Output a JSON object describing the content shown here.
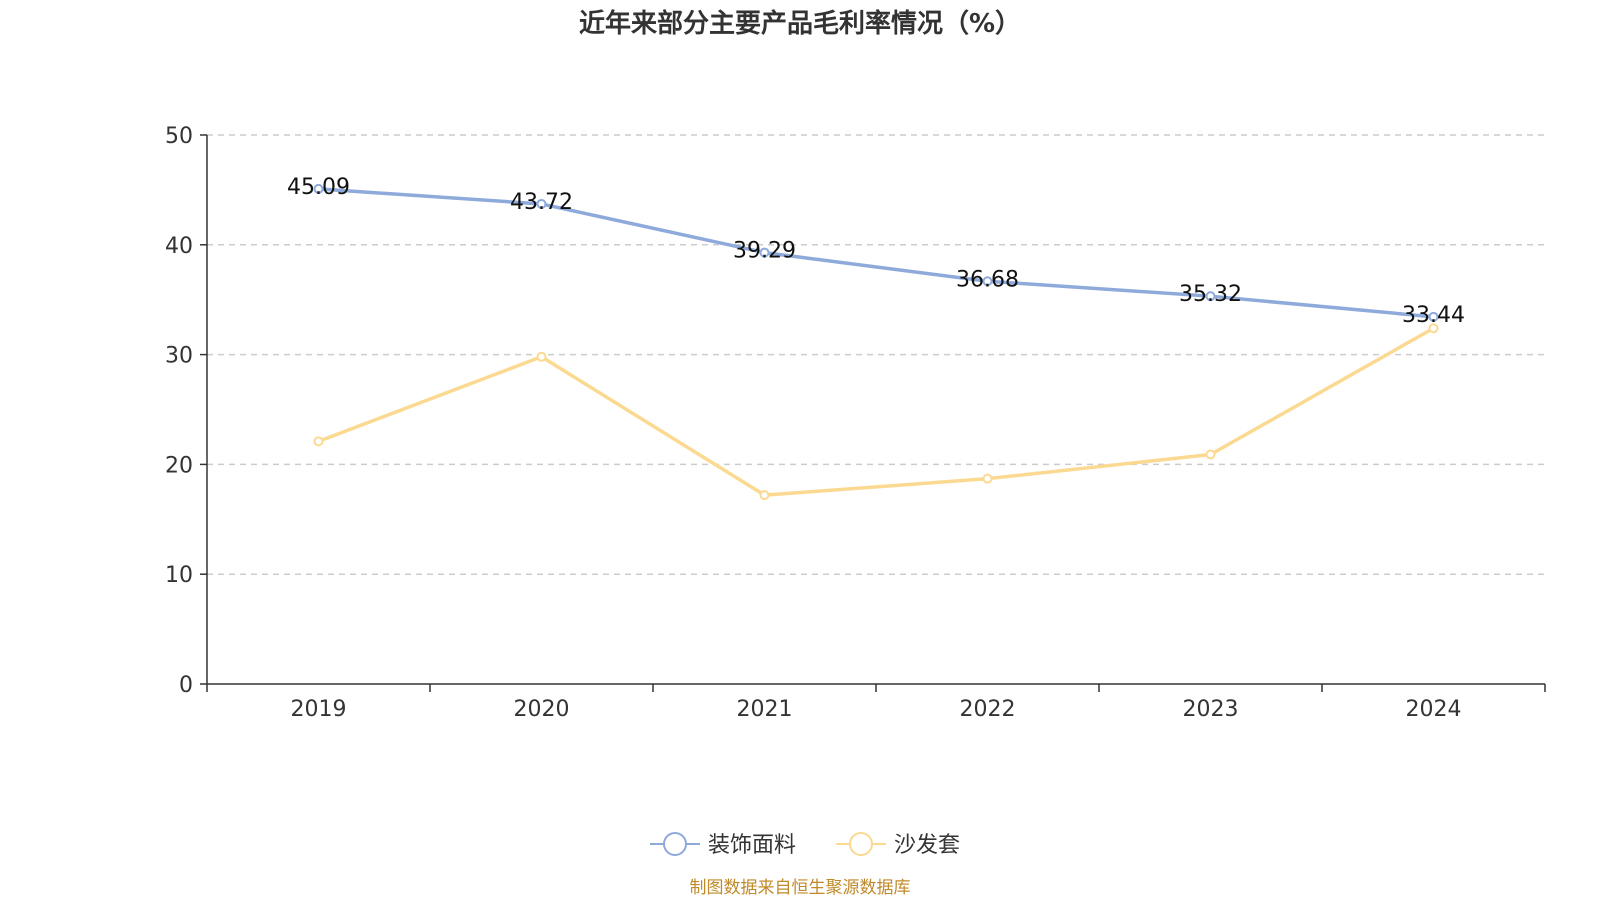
{
  "chart_data": {
    "type": "line",
    "title": "近年来部分主要产品毛利率情况（%）",
    "categories": [
      "2019",
      "2020",
      "2021",
      "2022",
      "2023",
      "2024"
    ],
    "ylim": [
      0,
      50
    ],
    "yticks": [
      "0",
      "10",
      "20",
      "30",
      "40",
      "50"
    ],
    "grid": true,
    "legend_position": "bottom-center",
    "series": [
      {
        "name": "装饰面料",
        "color": "#8eaadb",
        "values": [
          45.09,
          43.72,
          39.29,
          36.68,
          35.32,
          33.44
        ],
        "labels": [
          "45.09",
          "43.72",
          "39.29",
          "36.68",
          "35.32",
          "33.44"
        ]
      },
      {
        "name": "沙发套",
        "color": "#fbd991",
        "values": [
          22.1,
          29.8,
          17.2,
          18.7,
          20.9,
          32.4
        ],
        "labels": []
      }
    ],
    "source": "制图数据来自恒生聚源数据库"
  }
}
